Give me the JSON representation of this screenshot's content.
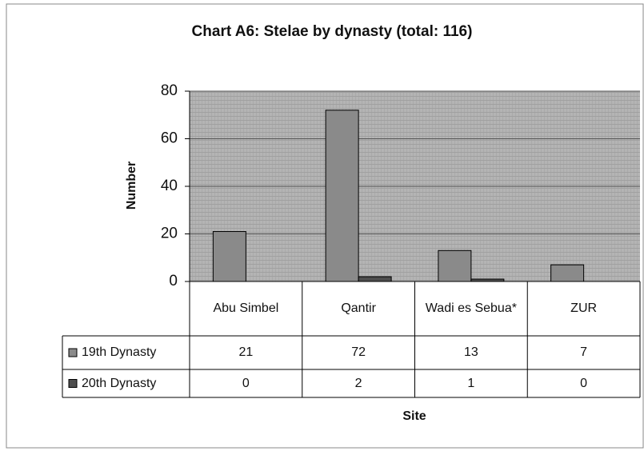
{
  "chart_data": {
    "type": "bar",
    "title": "Chart A6: Stelae by dynasty (total: 116)",
    "x_label": "Site",
    "y_label": "Number",
    "categories": [
      "Abu Simbel",
      "Qantir",
      "Wadi es Sebua*",
      "ZUR"
    ],
    "series": [
      {
        "name": "19th Dynasty",
        "color": "#8a8a8a",
        "values": [
          21,
          72,
          13,
          7
        ]
      },
      {
        "name": "20th Dynasty",
        "color": "#4e4e4e",
        "values": [
          0,
          2,
          1,
          0
        ]
      }
    ],
    "ylim": [
      0,
      80
    ],
    "yticks": [
      0,
      20,
      40,
      60,
      80
    ],
    "grid": true
  }
}
